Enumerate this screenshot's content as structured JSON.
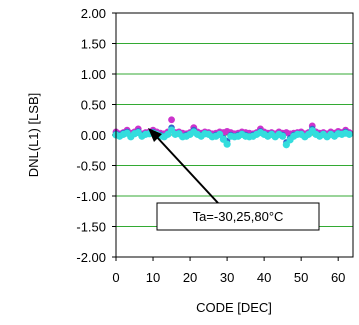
{
  "chart_data": {
    "type": "scatter",
    "xlabel": "CODE [DEC]",
    "ylabel": "DNL(L1)  [LSB]",
    "xlim": [
      0,
      64
    ],
    "ylim": [
      -2.0,
      2.0
    ],
    "x_ticks": [
      "0",
      "10",
      "20",
      "30",
      "40",
      "50",
      "60"
    ],
    "y_ticks": [
      "2.00",
      "1.50",
      "1.00",
      "0.50",
      "0.00",
      "-0.50",
      "-1.00",
      "-1.50",
      "-2.00"
    ],
    "grid": "horizontal",
    "annotation": "Ta=-30,25,80°C",
    "colors": {
      "series_magenta": "#cc33cc",
      "series_cyan": "#33dddd",
      "series_blue": "#3366cc",
      "grid": "#33aa33"
    },
    "series": [
      {
        "values_x": [
          0,
          1,
          2,
          3,
          4,
          5,
          6,
          7,
          8,
          9,
          10,
          11,
          12,
          13,
          14,
          15,
          16,
          17,
          18,
          19,
          20,
          21,
          22,
          23,
          24,
          25,
          26,
          27,
          28,
          29,
          30,
          31,
          32,
          33,
          34,
          35,
          36,
          37,
          38,
          39,
          40,
          41,
          42,
          43,
          44,
          45,
          46,
          47,
          48,
          49,
          50,
          51,
          52,
          53,
          54,
          55,
          56,
          57,
          58,
          59,
          60,
          61,
          62,
          63
        ],
        "values_y": [
          0.05,
          0.02,
          0.04,
          0.08,
          0.03,
          0.05,
          0.1,
          0.02,
          0.04,
          0.05,
          0.08,
          0.05,
          0.03,
          0.02,
          0.05,
          0.25,
          0.04,
          0.05,
          0.03,
          0.02,
          0.04,
          0.12,
          0.05,
          0.03,
          0.05,
          0.04,
          0.02,
          0.03,
          0.05,
          0.04,
          0.06,
          0.04,
          0.02,
          0.03,
          0.05,
          0.04,
          0.03,
          0.02,
          0.04,
          0.1,
          0.05,
          0.03,
          0.04,
          0.02,
          0.05,
          0.03,
          0.04,
          0.02,
          0.03,
          0.04,
          0.05,
          0.02,
          0.04,
          0.15,
          0.05,
          0.03,
          0.04,
          0.02,
          0.05,
          0.03,
          0.06,
          0.04,
          0.08,
          0.04
        ]
      },
      {
        "values_x": [
          0,
          1,
          2,
          3,
          4,
          5,
          6,
          7,
          8,
          9,
          10,
          11,
          12,
          13,
          14,
          15,
          16,
          17,
          18,
          19,
          20,
          21,
          22,
          23,
          24,
          25,
          26,
          27,
          28,
          29,
          30,
          31,
          32,
          33,
          34,
          35,
          36,
          37,
          38,
          39,
          40,
          41,
          42,
          43,
          44,
          45,
          46,
          47,
          48,
          49,
          50,
          51,
          52,
          53,
          54,
          55,
          56,
          57,
          58,
          59,
          60,
          61,
          62,
          63
        ],
        "values_y": [
          0.02,
          0.0,
          0.03,
          0.05,
          -0.02,
          0.03,
          0.06,
          0.0,
          0.02,
          0.03,
          0.05,
          0.02,
          0.0,
          -0.02,
          0.02,
          0.12,
          0.02,
          0.03,
          -0.02,
          0.0,
          0.02,
          0.08,
          0.02,
          0.0,
          0.03,
          0.02,
          -0.02,
          0.0,
          0.02,
          -0.05,
          -0.1,
          0.0,
          -0.02,
          0.0,
          0.02,
          0.0,
          -0.02,
          0.0,
          0.02,
          0.06,
          0.02,
          0.0,
          0.02,
          -0.02,
          0.02,
          0.0,
          -0.12,
          -0.05,
          0.0,
          0.02,
          0.02,
          -0.02,
          0.02,
          0.1,
          0.02,
          0.0,
          0.02,
          -0.02,
          0.02,
          0.0,
          0.03,
          0.02,
          0.05,
          0.02
        ]
      },
      {
        "values_x": [
          0,
          1,
          2,
          3,
          4,
          5,
          6,
          7,
          8,
          9,
          10,
          11,
          12,
          13,
          14,
          15,
          16,
          17,
          18,
          19,
          20,
          21,
          22,
          23,
          24,
          25,
          26,
          27,
          28,
          29,
          30,
          31,
          32,
          33,
          34,
          35,
          36,
          37,
          38,
          39,
          40,
          41,
          42,
          43,
          44,
          45,
          46,
          47,
          48,
          49,
          50,
          51,
          52,
          53,
          54,
          55,
          56,
          57,
          58,
          59,
          60,
          61,
          62,
          63
        ],
        "values_y": [
          0.0,
          -0.02,
          0.01,
          0.03,
          -0.03,
          0.02,
          0.04,
          -0.02,
          0.01,
          0.02,
          0.03,
          0.01,
          -0.02,
          -0.03,
          0.01,
          0.08,
          0.01,
          0.02,
          -0.03,
          -0.02,
          0.01,
          0.05,
          0.01,
          -0.02,
          0.02,
          0.01,
          -0.03,
          -0.02,
          0.01,
          -0.07,
          -0.15,
          -0.02,
          -0.03,
          -0.02,
          0.01,
          -0.02,
          -0.03,
          -0.02,
          0.01,
          0.04,
          0.01,
          -0.02,
          0.01,
          -0.03,
          0.01,
          -0.02,
          -0.16,
          -0.08,
          -0.02,
          0.01,
          0.01,
          -0.03,
          0.01,
          0.07,
          0.01,
          -0.02,
          0.01,
          -0.03,
          0.01,
          -0.02,
          0.02,
          0.01,
          0.03,
          0.01
        ]
      }
    ]
  }
}
